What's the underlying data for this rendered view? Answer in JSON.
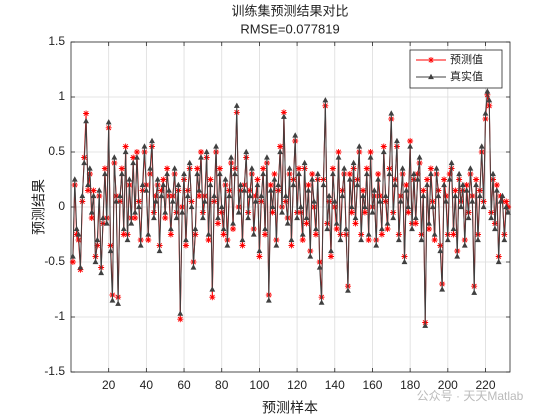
{
  "chart_data": {
    "type": "line",
    "title": "训练集预测结果对比",
    "subtitle": "RMSE=0.077819",
    "xlabel": "预测样本",
    "ylabel": "预测结果",
    "watermark": "公众号 · 天天Matlab",
    "legend": "upper right",
    "grid": true,
    "xlim": [
      0,
      233
    ],
    "ylim": [
      -1.5,
      1.5
    ],
    "xticks": [
      20,
      40,
      60,
      80,
      100,
      120,
      140,
      160,
      180,
      200,
      220
    ],
    "yticks": [
      -1.5,
      -1,
      -0.5,
      0,
      0.5,
      1,
      1.5
    ],
    "x": [
      1,
      2,
      3,
      4,
      5,
      6,
      7,
      8,
      9,
      10,
      11,
      12,
      13,
      14,
      15,
      16,
      17,
      18,
      19,
      20,
      21,
      22,
      23,
      24,
      25,
      26,
      27,
      28,
      29,
      30,
      31,
      32,
      33,
      34,
      35,
      36,
      37,
      38,
      39,
      40,
      41,
      42,
      43,
      44,
      45,
      46,
      47,
      48,
      49,
      50,
      51,
      52,
      53,
      54,
      55,
      56,
      57,
      58,
      59,
      60,
      61,
      62,
      63,
      64,
      65,
      66,
      67,
      68,
      69,
      70,
      71,
      72,
      73,
      74,
      75,
      76,
      77,
      78,
      79,
      80,
      81,
      82,
      83,
      84,
      85,
      86,
      87,
      88,
      89,
      90,
      91,
      92,
      93,
      94,
      95,
      96,
      97,
      98,
      99,
      100,
      101,
      102,
      103,
      104,
      105,
      106,
      107,
      108,
      109,
      110,
      111,
      112,
      113,
      114,
      115,
      116,
      117,
      118,
      119,
      120,
      121,
      122,
      123,
      124,
      125,
      126,
      127,
      128,
      129,
      130,
      131,
      132,
      133,
      134,
      135,
      136,
      137,
      138,
      139,
      140,
      141,
      142,
      143,
      144,
      145,
      146,
      147,
      148,
      149,
      150,
      151,
      152,
      153,
      154,
      155,
      156,
      157,
      158,
      159,
      160,
      161,
      162,
      163,
      164,
      165,
      166,
      167,
      168,
      169,
      170,
      171,
      172,
      173,
      174,
      175,
      176,
      177,
      178,
      179,
      180,
      181,
      182,
      183,
      184,
      185,
      186,
      187,
      188,
      189,
      190,
      191,
      192,
      193,
      194,
      195,
      196,
      197,
      198,
      199,
      200,
      201,
      202,
      203,
      204,
      205,
      206,
      207,
      208,
      209,
      210,
      211,
      212,
      213,
      214,
      215,
      216,
      217,
      218,
      219,
      220,
      221,
      222,
      223,
      224,
      225,
      226,
      227,
      228,
      229,
      230,
      231,
      232
    ],
    "series": [
      {
        "name": "预测值",
        "color": "#ff0000",
        "marker": "star",
        "values": [
          -0.5,
          0.2,
          -0.25,
          -0.3,
          -0.57,
          0.05,
          0.45,
          0.85,
          0.15,
          0.3,
          -0.1,
          0.15,
          -0.45,
          -0.35,
          0.1,
          -0.55,
          -0.15,
          0.35,
          -0.1,
          0.72,
          -0.35,
          -0.8,
          0.4,
          0.1,
          -0.82,
          0.05,
          0.35,
          -0.25,
          0.55,
          -0.25,
          0.2,
          -0.1,
          0.45,
          -0.1,
          0.5,
          0.05,
          -0.3,
          0.15,
          0.5,
          0.2,
          -0.3,
          0.3,
          0.55,
          -0.05,
          0.1,
          0.2,
          -0.35,
          0.15,
          0.25,
          -0.1,
          0.35,
          0.1,
          -0.25,
          0.1,
          0.3,
          -0.05,
          0.15,
          -1.02,
          0.0,
          0.25,
          -0.35,
          0.15,
          0.35,
          0.05,
          -0.5,
          -0.25,
          0.35,
          0.1,
          0.5,
          -0.05,
          0.1,
          0.45,
          -0.3,
          0.25,
          -0.82,
          0.05,
          0.5,
          -0.15,
          0.35,
          -0.05,
          -0.25,
          0.2,
          -0.3,
          0.15,
          0.4,
          -0.2,
          0.35,
          0.86,
          0.0,
          0.15,
          -0.35,
          0.2,
          0.45,
          -0.05,
          0.15,
          0.3,
          -0.2,
          0.1,
          0.25,
          -0.45,
          0.05,
          0.35,
          -0.25,
          0.4,
          -0.8,
          0.2,
          -0.05,
          0.3,
          -0.3,
          0.15,
          0.55,
          0.0,
          0.86,
          0.05,
          -0.1,
          0.3,
          -0.35,
          0.25,
          0.6,
          -0.05,
          0.35,
          -0.05,
          -0.3,
          0.35,
          -0.15,
          0.2,
          -0.4,
          0.3,
          0.0,
          -0.25,
          0.25,
          -0.5,
          -0.82,
          0.25,
          0.92,
          -0.15,
          0.05,
          -0.45,
          0.35,
          0.0,
          -0.2,
          0.5,
          -0.25,
          0.15,
          0.3,
          -0.25,
          -0.72,
          0.3,
          -0.05,
          0.35,
          -0.15,
          0.25,
          0.5,
          -0.25,
          0.15,
          -0.05,
          0.35,
          -0.3,
          0.5,
          0.0,
          0.1,
          -0.3,
          0.3,
          0.1,
          -0.25,
          0.55,
          0.05,
          -0.2,
          0.35,
          0.8,
          -0.05,
          0.25,
          0.55,
          -0.25,
          0.1,
          0.3,
          -0.45,
          0.2,
          -0.05,
          0.6,
          -0.15,
          0.25,
          -0.15,
          0.3,
          0.4,
          -0.25,
          0.15,
          -1.05,
          0.25,
          -0.2,
          0.35,
          0.05,
          -0.3,
          0.3,
          0.15,
          -0.35,
          -0.7,
          0.25,
          0.1,
          -0.25,
          0.3,
          0.35,
          -0.25,
          0.15,
          -0.4,
          0.25,
          0.05,
          0.15,
          -0.3,
          0.2,
          -0.05,
          0.3,
          0.1,
          -0.72,
          0.25,
          -0.25,
          0.15,
          0.5,
          0.05,
          0.8,
          1.02,
          0.92,
          -0.05,
          0.25,
          -0.15,
          0.2,
          -0.45,
          0.1,
          0.05,
          -0.25,
          0.05,
          0.0
        ]
      },
      {
        "name": "真实值",
        "color": "#404040",
        "marker": "triangle",
        "values": [
          -0.45,
          0.25,
          -0.2,
          -0.25,
          -0.55,
          0.1,
          0.4,
          0.78,
          0.2,
          0.35,
          -0.05,
          0.1,
          -0.5,
          -0.3,
          0.15,
          -0.6,
          -0.1,
          0.3,
          -0.15,
          0.77,
          -0.4,
          -0.85,
          0.45,
          0.05,
          -0.88,
          0.1,
          0.3,
          -0.2,
          0.5,
          -0.3,
          0.25,
          -0.15,
          0.4,
          -0.05,
          0.45,
          0.0,
          -0.35,
          0.2,
          0.55,
          0.15,
          -0.25,
          0.35,
          0.6,
          -0.1,
          0.05,
          0.25,
          -0.4,
          0.1,
          0.2,
          -0.05,
          0.3,
          0.15,
          -0.2,
          0.05,
          0.35,
          -0.1,
          0.2,
          -0.97,
          -0.05,
          0.3,
          -0.3,
          0.1,
          0.4,
          0.0,
          -0.55,
          -0.2,
          0.3,
          0.15,
          0.45,
          -0.1,
          0.05,
          0.5,
          -0.25,
          0.2,
          -0.75,
          0.1,
          0.55,
          -0.1,
          0.3,
          0.0,
          -0.2,
          0.25,
          -0.35,
          0.1,
          0.45,
          -0.15,
          0.3,
          0.92,
          -0.05,
          0.2,
          -0.3,
          0.15,
          0.5,
          -0.1,
          0.1,
          0.35,
          -0.25,
          0.05,
          0.2,
          -0.4,
          0.1,
          0.3,
          -0.2,
          0.45,
          -0.85,
          0.15,
          0.0,
          0.25,
          -0.35,
          0.2,
          0.5,
          -0.05,
          0.82,
          0.1,
          -0.15,
          0.35,
          -0.3,
          0.2,
          0.65,
          -0.1,
          0.3,
          0.0,
          -0.25,
          0.4,
          -0.1,
          0.15,
          -0.45,
          0.25,
          0.05,
          -0.2,
          0.3,
          -0.55,
          -0.87,
          0.2,
          0.97,
          -0.2,
          0.1,
          -0.4,
          0.3,
          0.05,
          -0.15,
          0.45,
          -0.3,
          0.1,
          0.35,
          -0.2,
          -0.76,
          0.25,
          0.0,
          0.4,
          -0.1,
          0.2,
          0.55,
          -0.3,
          0.1,
          0.0,
          0.3,
          -0.25,
          0.45,
          -0.05,
          0.15,
          -0.35,
          0.25,
          0.05,
          -0.2,
          0.5,
          0.1,
          -0.15,
          0.3,
          0.85,
          -0.1,
          0.2,
          0.6,
          -0.3,
          0.05,
          0.35,
          -0.5,
          0.15,
          0.0,
          0.55,
          -0.2,
          0.3,
          -0.1,
          0.25,
          0.45,
          -0.3,
          0.1,
          -1.08,
          0.2,
          -0.15,
          0.3,
          0.0,
          -0.25,
          0.35,
          0.1,
          -0.4,
          -0.75,
          0.2,
          0.05,
          -0.3,
          0.25,
          0.4,
          -0.2,
          0.1,
          -0.45,
          0.3,
          0.0,
          0.2,
          -0.35,
          0.15,
          -0.1,
          0.35,
          0.05,
          -0.78,
          0.2,
          -0.3,
          0.1,
          0.55,
          0.0,
          0.85,
          1.05,
          0.97,
          -0.1,
          0.3,
          -0.2,
          0.15,
          -0.5,
          0.05,
          0.1,
          -0.3,
          0.0,
          -0.05
        ]
      }
    ]
  }
}
